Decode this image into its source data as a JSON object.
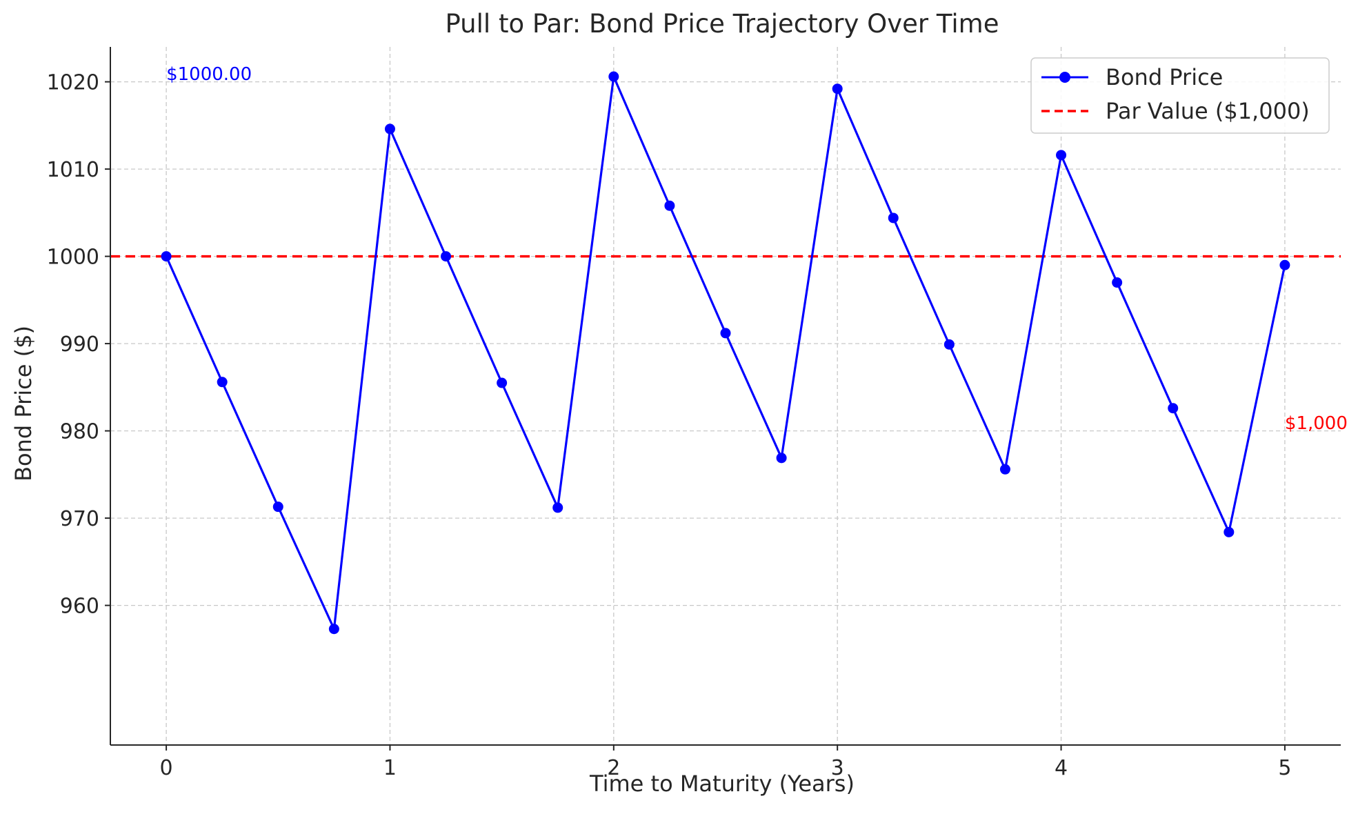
{
  "chart_data": {
    "type": "line",
    "title": "Pull to Par: Bond Price Trajectory Over Time",
    "xlabel": "Time to Maturity (Years)",
    "ylabel": "Bond Price ($)",
    "xlim": [
      -0.25,
      5.25
    ],
    "ylim": [
      944,
      1024
    ],
    "xticks": [
      0,
      1,
      2,
      3,
      4,
      5
    ],
    "yticks": [
      960,
      970,
      980,
      990,
      1000,
      1010,
      1020
    ],
    "grid": true,
    "legend_position": "top-right",
    "series": [
      {
        "name": "Bond Price",
        "color": "#0000ff",
        "style": "solid-line-with-circle-markers",
        "x": [
          0,
          0.25,
          0.5,
          0.75,
          1,
          1.25,
          1.5,
          1.75,
          2,
          2.25,
          2.5,
          2.75,
          3,
          3.25,
          3.5,
          3.75,
          4,
          4.25,
          4.5,
          4.75,
          5
        ],
        "y": [
          1000.0,
          985.6,
          971.3,
          957.3,
          1014.6,
          1000.0,
          985.5,
          971.2,
          1020.6,
          1005.8,
          991.2,
          976.9,
          1019.2,
          1004.4,
          989.9,
          975.6,
          1011.6,
          997.0,
          982.6,
          968.4,
          999.0
        ]
      },
      {
        "name": "Par Value ($1,000)",
        "color": "#ff0000",
        "style": "dashed-horizontal-line",
        "y": 1000
      }
    ],
    "annotations": [
      {
        "text": "$1000.00",
        "x": 0,
        "y": 1020.2,
        "color": "#0000ff"
      },
      {
        "text": "$1,000",
        "x": 5,
        "y": 980.2,
        "color": "#ff0000"
      }
    ]
  }
}
